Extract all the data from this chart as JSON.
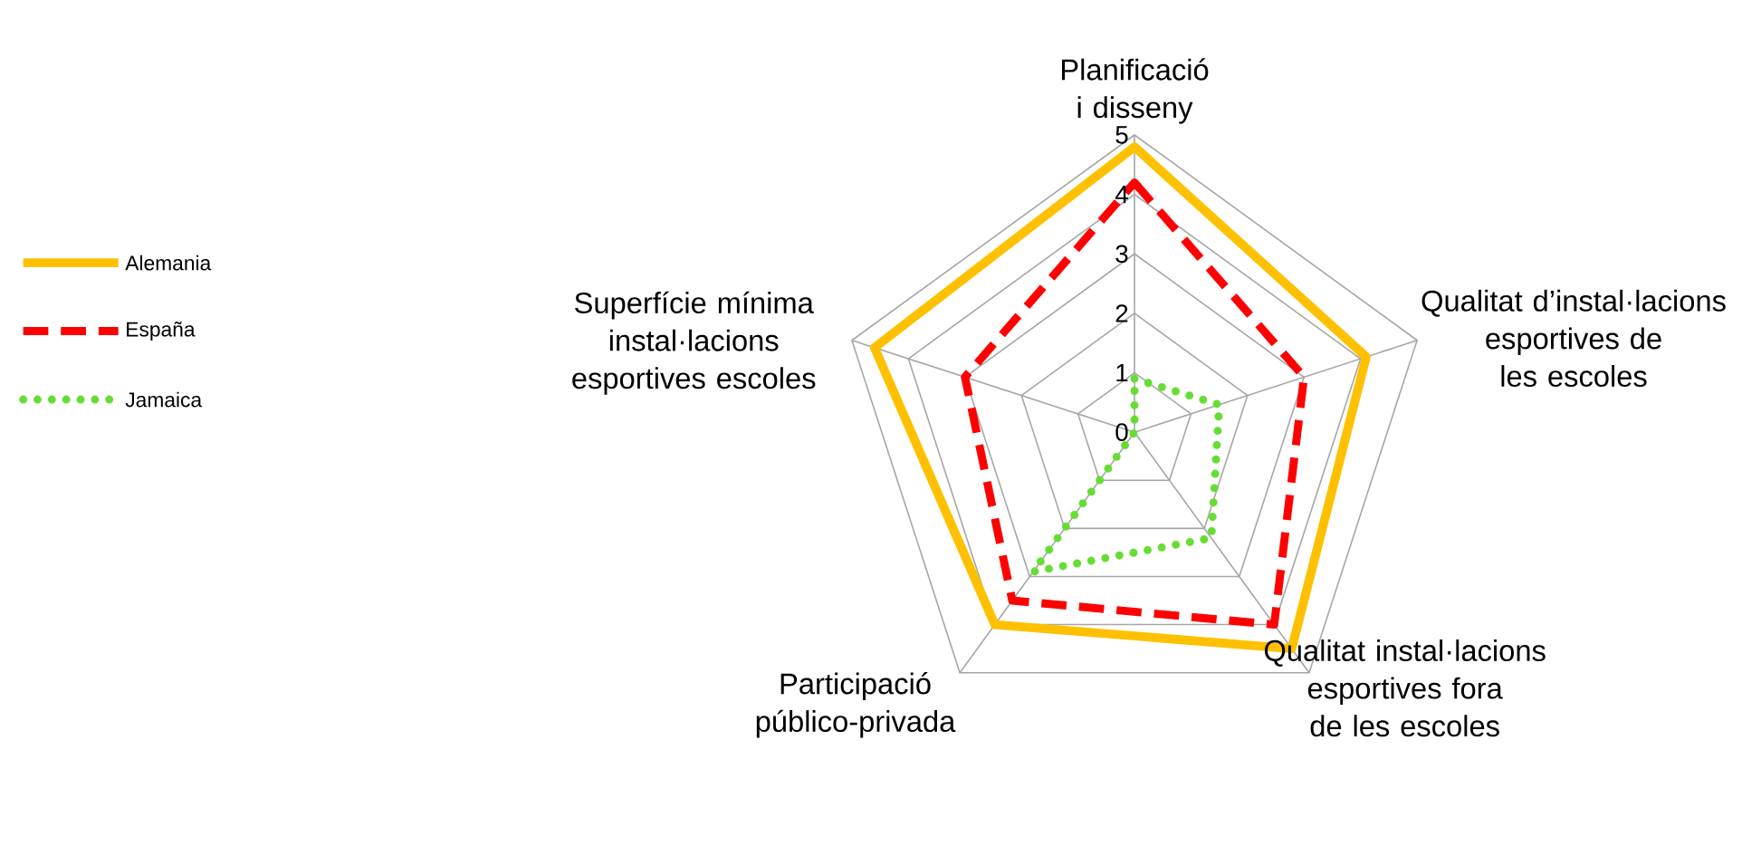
{
  "chart_data": {
    "type": "radar",
    "categories": [
      "Planificació i disseny",
      "Qualitat d’instal·lacions esportives de les escoles",
      "Qualitat instal·lacions esportives fora de les escoles",
      "Participació público-privada",
      "Superfície mínima instal·lacions esportives escoles"
    ],
    "series": [
      {
        "name": "Alemania",
        "color": "#ffc000",
        "line_style": "solid",
        "values": [
          4.8,
          4.1,
          4.5,
          4.0,
          4.6
        ]
      },
      {
        "name": "España",
        "color": "#ff0000",
        "line_style": "dashed",
        "values": [
          4.2,
          3.0,
          4.0,
          3.5,
          3.0
        ]
      },
      {
        "name": "Jamaica",
        "color": "#66dd33",
        "line_style": "dotted",
        "values": [
          0.9,
          1.5,
          2.2,
          2.9,
          0
        ]
      }
    ],
    "ylim": [
      0,
      5
    ],
    "yticks": [
      0,
      1,
      2,
      3,
      4,
      5
    ],
    "grid": true,
    "legend": "left"
  }
}
